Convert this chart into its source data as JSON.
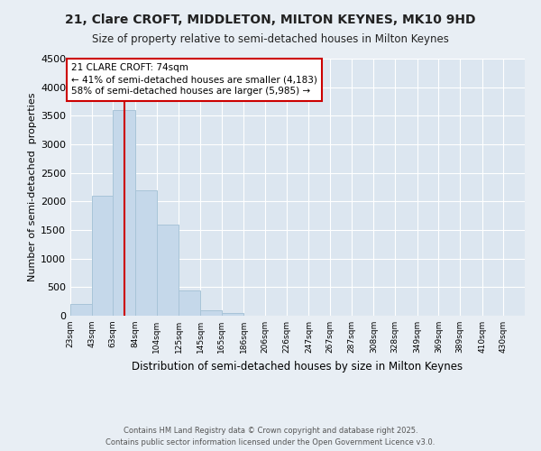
{
  "title": "21, Clare CROFT, MIDDLETON, MILTON KEYNES, MK10 9HD",
  "subtitle": "Size of property relative to semi-detached houses in Milton Keynes",
  "xlabel": "Distribution of semi-detached houses by size in Milton Keynes",
  "ylabel": "Number of semi-detached  properties",
  "categories": [
    "23sqm",
    "43sqm",
    "63sqm",
    "84sqm",
    "104sqm",
    "125sqm",
    "145sqm",
    "165sqm",
    "186sqm",
    "206sqm",
    "226sqm",
    "247sqm",
    "267sqm",
    "287sqm",
    "308sqm",
    "328sqm",
    "349sqm",
    "369sqm",
    "389sqm",
    "410sqm",
    "430sqm"
  ],
  "values": [
    200,
    2100,
    3600,
    2200,
    1600,
    450,
    100,
    50,
    0,
    0,
    0,
    0,
    0,
    0,
    0,
    0,
    0,
    0,
    0,
    0,
    0
  ],
  "bar_color": "#c5d8ea",
  "bar_edgecolor": "#a8c4d8",
  "ylim": [
    0,
    4500
  ],
  "yticks": [
    0,
    500,
    1000,
    1500,
    2000,
    2500,
    3000,
    3500,
    4000,
    4500
  ],
  "property_size": 74,
  "property_label": "21 CLARE CROFT: 74sqm",
  "annotation_line1": "← 41% of semi-detached houses are smaller (4,183)",
  "annotation_line2": "58% of semi-detached houses are larger (5,985) →",
  "red_line_color": "#cc0000",
  "annotation_box_edgecolor": "#cc0000",
  "background_color": "#e8eef4",
  "plot_bg_color": "#dce6f0",
  "footer_line1": "Contains HM Land Registry data © Crown copyright and database right 2025.",
  "footer_line2": "Contains public sector information licensed under the Open Government Licence v3.0.",
  "bin_edges": [
    23,
    43,
    63,
    84,
    104,
    125,
    145,
    165,
    186,
    206,
    226,
    247,
    267,
    287,
    308,
    328,
    349,
    369,
    389,
    410,
    430
  ]
}
